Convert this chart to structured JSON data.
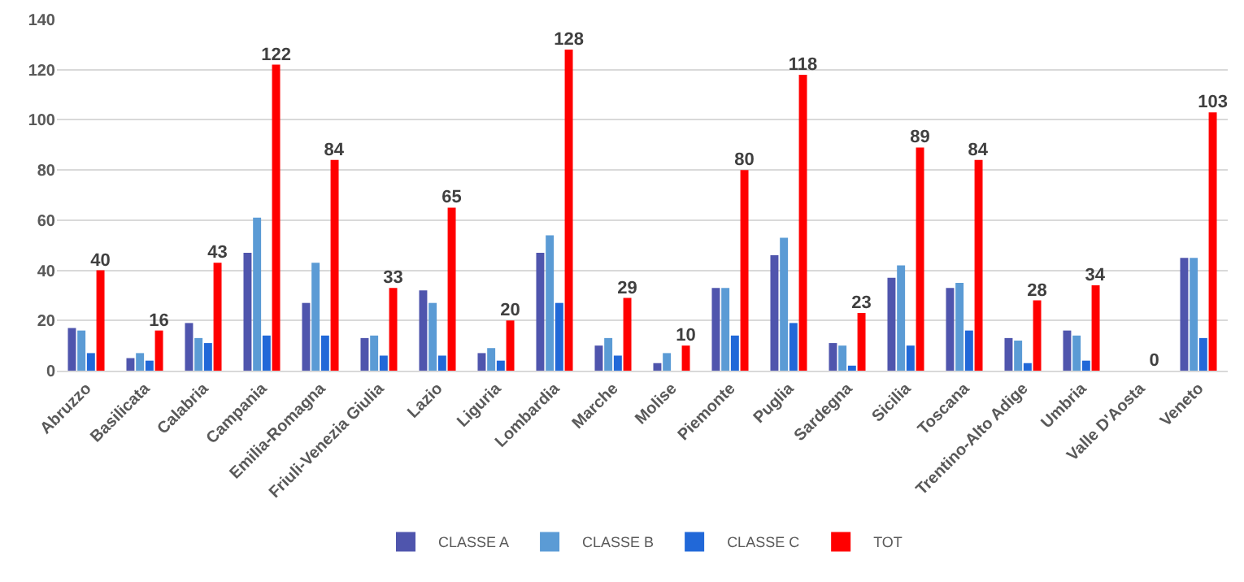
{
  "chart_data": {
    "type": "bar",
    "categories": [
      "Abruzzo",
      "Basilicata",
      "Calabria",
      "Campania",
      "Emilia-Romagna",
      "Friuli-Venezia Giulia",
      "Lazio",
      "Liguria",
      "Lombardia",
      "Marche",
      "Molise",
      "Piemonte",
      "Puglia",
      "Sardegna",
      "Sicilia",
      "Toscana",
      "Trentino-Alto Adige",
      "Umbria",
      "Valle D'Aosta",
      "Veneto"
    ],
    "series": [
      {
        "name": "CLASSE A",
        "color": "#4f55ad",
        "values": [
          17,
          5,
          19,
          47,
          27,
          13,
          32,
          7,
          47,
          10,
          3,
          33,
          46,
          11,
          37,
          33,
          13,
          16,
          0,
          45
        ]
      },
      {
        "name": "CLASSE B",
        "color": "#5b9bd5",
        "values": [
          16,
          7,
          13,
          61,
          43,
          14,
          27,
          9,
          54,
          13,
          7,
          33,
          53,
          10,
          42,
          35,
          12,
          14,
          0,
          45
        ]
      },
      {
        "name": "CLASSE C",
        "color": "#2168d8",
        "values": [
          7,
          4,
          11,
          14,
          14,
          6,
          6,
          4,
          27,
          6,
          0,
          14,
          19,
          2,
          10,
          16,
          3,
          4,
          0,
          13
        ]
      },
      {
        "name": "TOT",
        "color": "#ff0000",
        "values": [
          40,
          16,
          43,
          122,
          84,
          33,
          65,
          20,
          128,
          29,
          10,
          80,
          118,
          23,
          89,
          84,
          28,
          34,
          0,
          103
        ],
        "value_labels": [
          "40",
          "16",
          "43",
          "122",
          "84",
          "33",
          "65",
          "20",
          "128",
          "29",
          "10",
          "80",
          "118",
          "23",
          "89",
          "84",
          "28",
          "34",
          "0",
          "103"
        ]
      }
    ],
    "ylim": [
      0,
      140
    ],
    "yticks": [
      0,
      20,
      40,
      60,
      80,
      100,
      120,
      140
    ],
    "grid": "y",
    "legend": "bottom"
  }
}
